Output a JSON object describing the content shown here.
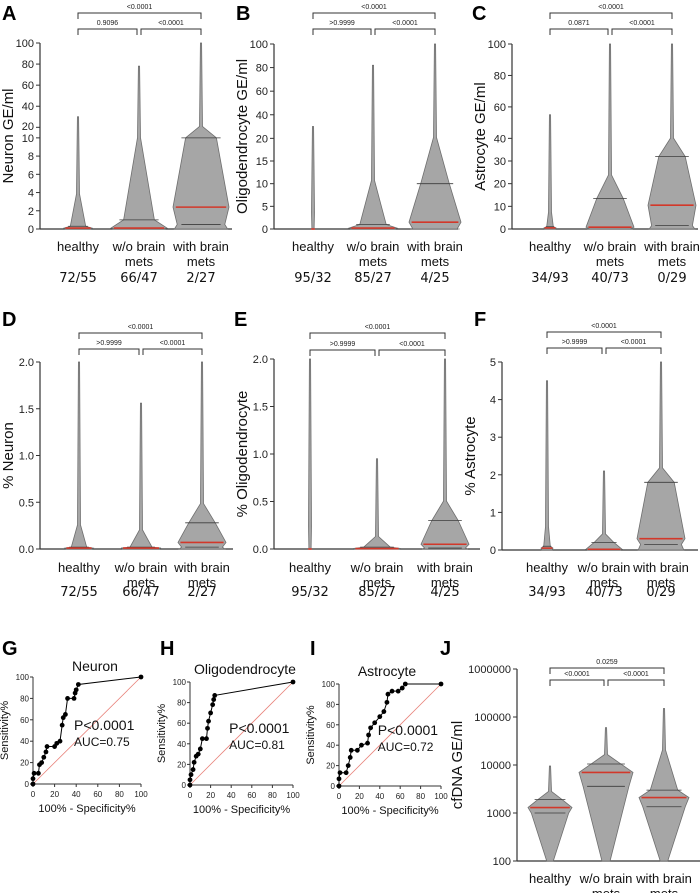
{
  "colors": {
    "violin_fill": "#a6a6a6",
    "violin_stroke": "#6e6e6e",
    "median": "#d2382a",
    "quartile": "#3c3c3c",
    "roc_points": "#000000",
    "reference_line": "#e8827a"
  },
  "chart_data": [
    {
      "panel": "A",
      "type": "violin",
      "ylabel": "Neuron GE/ml",
      "categories": [
        [
          "healthy"
        ],
        [
          "w/o brain",
          "mets"
        ],
        [
          "with brain",
          "mets"
        ]
      ],
      "counts": [
        "72/55",
        "66/47",
        "2/27"
      ],
      "ylim": [
        0,
        100
      ],
      "axis_break": 10,
      "yticks": [
        0,
        2,
        4,
        6,
        8,
        10,
        20,
        40,
        60,
        80,
        100
      ],
      "comparisons": [
        {
          "groups": [
            0,
            2
          ],
          "p": "<0.0001"
        },
        {
          "groups": [
            0,
            1
          ],
          "p": "0.9096"
        },
        {
          "groups": [
            1,
            2
          ],
          "p": "<0.0001"
        }
      ],
      "violins": [
        {
          "median": 0.1,
          "q1": 0,
          "q3": 0.3,
          "max": 30
        },
        {
          "median": 0.1,
          "q1": 0,
          "q3": 1,
          "max": 78
        },
        {
          "median": 2.4,
          "q1": 0.5,
          "q3": 10,
          "max": 100
        }
      ]
    },
    {
      "panel": "B",
      "type": "violin",
      "ylabel": "Oligodendrocyte GE/ml",
      "categories": [
        [
          "healthy"
        ],
        [
          "w/o brain",
          "mets"
        ],
        [
          "with brain",
          "mets"
        ]
      ],
      "counts": [
        "95/32",
        "85/27",
        "4/25"
      ],
      "ylim": [
        0,
        100
      ],
      "axis_break": 20,
      "yticks": [
        0,
        5,
        10,
        15,
        20,
        40,
        60,
        80,
        100
      ],
      "comparisons": [
        {
          "groups": [
            0,
            2
          ],
          "p": "<0.0001"
        },
        {
          "groups": [
            0,
            1
          ],
          "p": ">0.9999"
        },
        {
          "groups": [
            1,
            2
          ],
          "p": "<0.0001"
        }
      ],
      "violins": [
        {
          "median": 0,
          "q1": 0,
          "q3": 0,
          "max": 30
        },
        {
          "median": 0.2,
          "q1": 0,
          "q3": 1,
          "max": 82
        },
        {
          "median": 1.5,
          "q1": 0,
          "q3": 10,
          "max": 100
        }
      ]
    },
    {
      "panel": "C",
      "type": "violin",
      "ylabel": "Astrocyte GE/ml",
      "categories": [
        [
          "healthy"
        ],
        [
          "w/o brain",
          "mets"
        ],
        [
          "with brain",
          "mets"
        ]
      ],
      "counts": [
        "34/93",
        "40/73",
        "0/29"
      ],
      "ylim": [
        0,
        100
      ],
      "axis_break": 40,
      "yticks": [
        0,
        10,
        20,
        30,
        40,
        60,
        80,
        100
      ],
      "comparisons": [
        {
          "groups": [
            0,
            2
          ],
          "p": "<0.0001"
        },
        {
          "groups": [
            0,
            1
          ],
          "p": "0.0871"
        },
        {
          "groups": [
            1,
            2
          ],
          "p": "<0.0001"
        }
      ],
      "violins": [
        {
          "median": 0.5,
          "q1": 0,
          "q3": 1,
          "max": 55
        },
        {
          "median": 0.8,
          "q1": 0,
          "q3": 13.5,
          "max": 100
        },
        {
          "median": 10.5,
          "q1": 1.5,
          "q3": 32,
          "max": 100
        }
      ]
    },
    {
      "panel": "D",
      "type": "violin",
      "ylabel": "% Neuron",
      "categories": [
        [
          "healthy"
        ],
        [
          "w/o brain",
          "mets"
        ],
        [
          "with brain",
          "mets"
        ]
      ],
      "counts": [
        "72/55",
        "66/47",
        "2/27"
      ],
      "ylim": [
        0,
        2.0
      ],
      "yticks": [
        "0.0",
        "0.5",
        "1.0",
        "1.5",
        "2.0"
      ],
      "comparisons": [
        {
          "groups": [
            0,
            2
          ],
          "p": "<0.0001"
        },
        {
          "groups": [
            0,
            1
          ],
          "p": ">0.9999"
        },
        {
          "groups": [
            1,
            2
          ],
          "p": "<0.0001"
        }
      ],
      "violins": [
        {
          "median": 0.01,
          "q1": 0,
          "q3": 0.02,
          "max": 2.0
        },
        {
          "median": 0.01,
          "q1": 0,
          "q3": 0.02,
          "max": 1.56
        },
        {
          "median": 0.07,
          "q1": 0.02,
          "q3": 0.28,
          "max": 2.0
        }
      ]
    },
    {
      "panel": "E",
      "type": "violin",
      "ylabel": "% Oligodendrocyte",
      "categories": [
        [
          "healthy"
        ],
        [
          "w/o brain",
          "mets"
        ],
        [
          "with brain",
          "mets"
        ]
      ],
      "counts": [
        "95/32",
        "85/27",
        "4/25"
      ],
      "ylim": [
        0,
        2.0
      ],
      "yticks": [
        "0.0",
        "0.5",
        "1.0",
        "1.5",
        "2.0"
      ],
      "comparisons": [
        {
          "groups": [
            0,
            2
          ],
          "p": "<0.0001"
        },
        {
          "groups": [
            0,
            1
          ],
          "p": ">0.9999"
        },
        {
          "groups": [
            1,
            2
          ],
          "p": "<0.0001"
        }
      ],
      "violins": [
        {
          "median": 0,
          "q1": 0,
          "q3": 0,
          "max": 2.0
        },
        {
          "median": 0.005,
          "q1": 0,
          "q3": 0.02,
          "max": 0.95
        },
        {
          "median": 0.05,
          "q1": 0.01,
          "q3": 0.3,
          "max": 2.0
        }
      ]
    },
    {
      "panel": "F",
      "type": "violin",
      "ylabel": "% Astrocyte",
      "categories": [
        [
          "healthy"
        ],
        [
          "w/o brain",
          "mets"
        ],
        [
          "with brain",
          "mets"
        ]
      ],
      "counts": [
        "34/93",
        "40/73",
        "0/29"
      ],
      "ylim": [
        0,
        5
      ],
      "yticks": [
        "0",
        "1",
        "2",
        "3",
        "4",
        "5"
      ],
      "comparisons": [
        {
          "groups": [
            0,
            2
          ],
          "p": "<0.0001"
        },
        {
          "groups": [
            0,
            1
          ],
          "p": ">0.9999"
        },
        {
          "groups": [
            1,
            2
          ],
          "p": "<0.0001"
        }
      ],
      "violins": [
        {
          "median": 0.05,
          "q1": 0,
          "q3": 0.1,
          "max": 4.5
        },
        {
          "median": 0.02,
          "q1": 0,
          "q3": 0.2,
          "max": 2.1
        },
        {
          "median": 0.3,
          "q1": 0.15,
          "q3": 1.8,
          "max": 5
        }
      ]
    },
    {
      "panel": "G",
      "type": "line",
      "title": "Neuron",
      "xlabel": "100% - Specificity%",
      "ylabel": "Sensitivity%",
      "xlim": [
        0,
        100
      ],
      "ylim": [
        0,
        100
      ],
      "xticks": [
        0,
        20,
        40,
        60,
        80,
        100
      ],
      "yticks": [
        0,
        20,
        40,
        60,
        80,
        100
      ],
      "annotations": [
        "P<0.0001",
        "AUC=0.75"
      ],
      "x": [
        0,
        0,
        1,
        5,
        6,
        8,
        10,
        12,
        13,
        20,
        22,
        25,
        27,
        28,
        30,
        32,
        38,
        39,
        40,
        42,
        100
      ],
      "y": [
        0,
        5,
        10,
        10,
        18,
        20,
        25,
        30,
        35,
        35,
        38,
        40,
        55,
        62,
        65,
        80,
        80,
        85,
        88,
        93,
        100
      ]
    },
    {
      "panel": "H",
      "type": "line",
      "title": "Oligodendrocyte",
      "xlabel": "100% - Specificity%",
      "ylabel": "Sensitivity%",
      "xlim": [
        0,
        100
      ],
      "ylim": [
        0,
        100
      ],
      "xticks": [
        0,
        20,
        40,
        60,
        80,
        100
      ],
      "yticks": [
        0,
        20,
        40,
        60,
        80,
        100
      ],
      "annotations": [
        "P<0.0001",
        "AUC=0.81"
      ],
      "x": [
        0,
        0,
        1,
        3,
        4,
        6,
        8,
        10,
        12,
        16,
        17,
        18,
        20,
        22,
        23,
        24,
        100
      ],
      "y": [
        0,
        5,
        10,
        15,
        22,
        28,
        30,
        35,
        45,
        45,
        55,
        62,
        70,
        78,
        83,
        87,
        100
      ]
    },
    {
      "panel": "I",
      "type": "line",
      "title": "Astrocyte",
      "xlabel": "100% - Specificity%",
      "ylabel": "Sensitivity%",
      "xlim": [
        0,
        100
      ],
      "ylim": [
        0,
        100
      ],
      "xticks": [
        0,
        20,
        40,
        60,
        80,
        100
      ],
      "yticks": [
        0,
        20,
        40,
        60,
        80,
        100
      ],
      "annotations": [
        "P<0.0001",
        "AUC=0.72"
      ],
      "x": [
        0,
        0,
        1,
        7,
        9,
        11,
        12,
        18,
        22,
        28,
        29,
        31,
        35,
        40,
        44,
        47,
        48,
        52,
        58,
        62,
        65,
        100
      ],
      "y": [
        0,
        7,
        13,
        13,
        20,
        28,
        35,
        35,
        40,
        42,
        50,
        57,
        62,
        68,
        73,
        82,
        90,
        93,
        93,
        96,
        100,
        100
      ]
    },
    {
      "panel": "J",
      "type": "violin",
      "ylabel": "cfDNA GE/ml",
      "yscale": "log",
      "categories": [
        [
          "healthy"
        ],
        [
          "w/o brain",
          "mets"
        ],
        [
          "with brain",
          "mets"
        ]
      ],
      "ylim": [
        100,
        1000000
      ],
      "yticks": [
        "100",
        "1000",
        "10000",
        "100000",
        "1000000"
      ],
      "comparisons": [
        {
          "groups": [
            0,
            2
          ],
          "p": "0.0259"
        },
        {
          "groups": [
            0,
            1
          ],
          "p": "<0.0001"
        },
        {
          "groups": [
            1,
            2
          ],
          "p": "<0.0001"
        }
      ],
      "violins": [
        {
          "median": 1300,
          "q1": 1000,
          "q3": 1900,
          "max": 9500,
          "min": 100
        },
        {
          "median": 7000,
          "q1": 3600,
          "q3": 10500,
          "max": 60000,
          "min": 100
        },
        {
          "median": 2100,
          "q1": 1350,
          "q3": 3000,
          "max": 150000,
          "min": 100
        }
      ]
    }
  ]
}
